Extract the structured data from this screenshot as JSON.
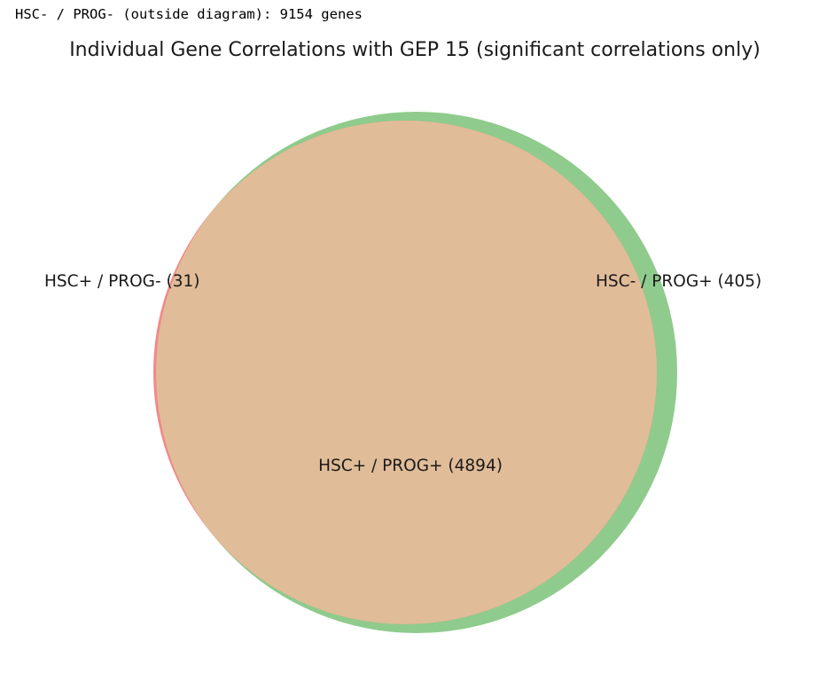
{
  "console": {
    "output_line": "HSC- / PROG- (outside diagram): 9154 genes"
  },
  "chart_data": {
    "type": "venn",
    "title": "Individual Gene Correlations with GEP 15 (significant correlations only)",
    "sets": [
      {
        "name": "HSC+",
        "color": "#f4878a"
      },
      {
        "name": "PROG+",
        "color": "#8fcb8c"
      }
    ],
    "overlap_color": "#e0bc98",
    "regions": [
      {
        "id": "hsc_only",
        "label": "HSC+ / PROG- (31)",
        "count": 31
      },
      {
        "id": "prog_only",
        "label": "HSC- / PROG+ (405)",
        "count": 405
      },
      {
        "id": "both",
        "label": "HSC+ / PROG+ (4894)",
        "count": 4894
      }
    ],
    "outside": {
      "label": "HSC- / PROG-",
      "count": 9154
    }
  }
}
